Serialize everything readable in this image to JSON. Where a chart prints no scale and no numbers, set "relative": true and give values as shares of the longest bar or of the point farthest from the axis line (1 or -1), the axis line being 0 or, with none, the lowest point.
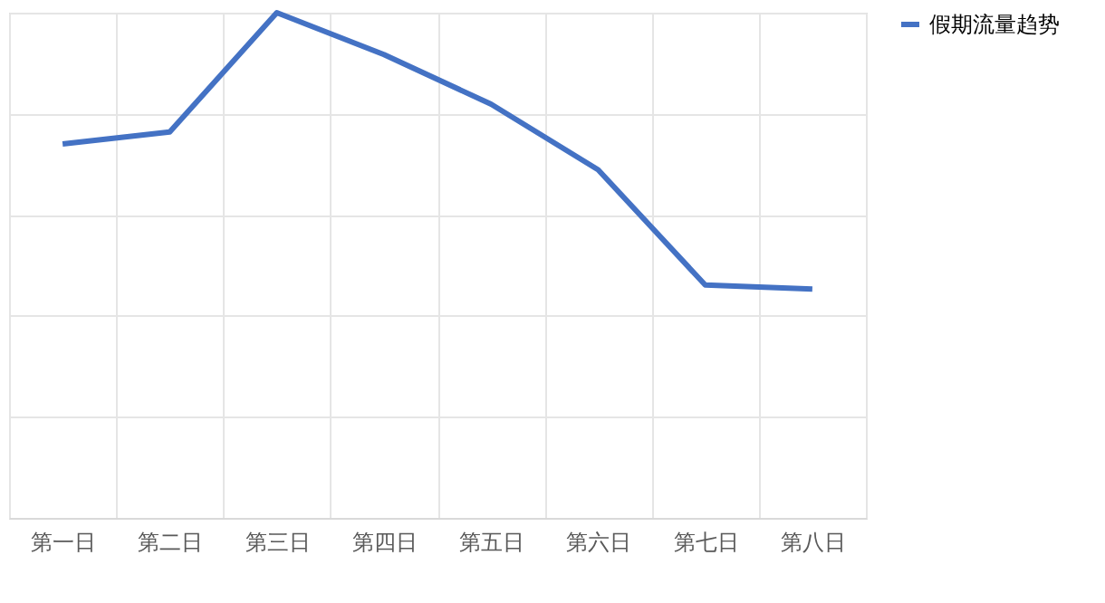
{
  "chart_data": {
    "type": "line",
    "relative": true,
    "categories": [
      "第一日",
      "第二日",
      "第三日",
      "第四日",
      "第五日",
      "第六日",
      "第七日",
      "第八日"
    ],
    "series": [
      {
        "name": "假期流量趋势",
        "color": "#4472c4",
        "values": [
          0.74,
          0.764,
          1,
          0.917,
          0.819,
          0.689,
          0.461,
          0.453
        ]
      }
    ],
    "grid": true,
    "legend": "right",
    "marker": "none",
    "line_style": "solid"
  }
}
